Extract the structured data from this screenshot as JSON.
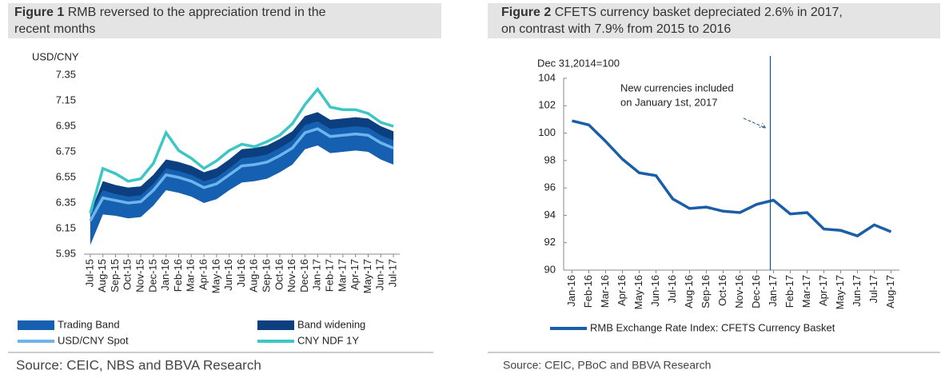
{
  "chart_data": [
    {
      "type": "band_line",
      "figure_label": "Figure 1",
      "title_lines": [
        "RMB reversed to the appreciation trend in the",
        "recent months"
      ],
      "y_label": "USD/CNY",
      "source": "Source: CEIC, NBS and BBVA Research",
      "categories": [
        "Jul-15",
        "Aug-15",
        "Sep-15",
        "Oct-15",
        "Nov-15",
        "Dec-15",
        "Jan-16",
        "Feb-16",
        "Mar-16",
        "Apr-16",
        "May-16",
        "Jun-16",
        "Jul-16",
        "Aug-16",
        "Sep-16",
        "Oct-16",
        "Nov-16",
        "Dec-16",
        "Jan-17",
        "Feb-17",
        "Mar-17",
        "Apr-17",
        "May-17",
        "Jun-17",
        "Jul-17"
      ],
      "ylim": [
        5.95,
        7.35
      ],
      "yticks": [
        5.95,
        6.15,
        6.35,
        6.55,
        6.75,
        6.95,
        7.15,
        7.35
      ],
      "series": [
        {
          "name": "Trading Band",
          "kind": "band",
          "color": "#1560b0",
          "values": [
            6.27,
            6.52,
            6.49,
            6.47,
            6.48,
            6.57,
            6.69,
            6.67,
            6.64,
            6.59,
            6.62,
            6.69,
            6.77,
            6.78,
            6.8,
            6.85,
            6.91,
            7.03,
            7.06,
            7.0,
            7.01,
            7.02,
            7.01,
            6.95,
            6.91
          ],
          "lower": [
            6.02,
            6.26,
            6.25,
            6.23,
            6.24,
            6.33,
            6.45,
            6.43,
            6.4,
            6.35,
            6.38,
            6.45,
            6.51,
            6.52,
            6.54,
            6.59,
            6.65,
            6.77,
            6.8,
            6.74,
            6.75,
            6.76,
            6.75,
            6.69,
            6.65
          ]
        },
        {
          "name": "Band widening",
          "kind": "band",
          "color": "#0b3f7f",
          "values": [
            6.27,
            6.52,
            6.49,
            6.47,
            6.48,
            6.57,
            6.69,
            6.67,
            6.64,
            6.59,
            6.62,
            6.69,
            6.77,
            6.78,
            6.8,
            6.85,
            6.91,
            7.03,
            7.06,
            7.0,
            7.01,
            7.02,
            7.01,
            6.95,
            6.91
          ],
          "lower": [
            6.27,
            6.45,
            6.42,
            6.4,
            6.41,
            6.5,
            6.62,
            6.6,
            6.57,
            6.52,
            6.55,
            6.62,
            6.7,
            6.71,
            6.73,
            6.78,
            6.84,
            6.96,
            6.99,
            6.93,
            6.94,
            6.95,
            6.94,
            6.88,
            6.84
          ]
        },
        {
          "name": "USD/CNY Spot",
          "kind": "line",
          "color": "#6db5ec",
          "values": [
            6.21,
            6.39,
            6.37,
            6.35,
            6.36,
            6.45,
            6.57,
            6.55,
            6.52,
            6.47,
            6.5,
            6.57,
            6.64,
            6.65,
            6.67,
            6.72,
            6.78,
            6.9,
            6.93,
            6.87,
            6.88,
            6.89,
            6.88,
            6.82,
            6.78
          ]
        },
        {
          "name": "CNY NDF 1Y",
          "kind": "line",
          "color": "#3cc6c4",
          "values": [
            6.27,
            6.62,
            6.58,
            6.52,
            6.54,
            6.66,
            6.9,
            6.76,
            6.7,
            6.62,
            6.68,
            6.76,
            6.81,
            6.79,
            6.83,
            6.88,
            6.97,
            7.12,
            7.24,
            7.1,
            7.08,
            7.08,
            7.05,
            6.98,
            6.95
          ]
        }
      ]
    },
    {
      "type": "line",
      "figure_label": "Figure 2",
      "title_lines": [
        "CFETS currency basket depreciated 2.6% in 2017,",
        "on contrast with 7.9% from 2015 to  2016"
      ],
      "y_label": "Dec 31,2014=100",
      "source": "Source: CEIC, PBoC and BBVA Research",
      "annotation": {
        "lines": [
          "New currencies included",
          "on January 1st, 2017"
        ],
        "at": "Jan-17"
      },
      "categories": [
        "Jan-16",
        "Feb-16",
        "Mar-16",
        "Apr-16",
        "May-16",
        "Jun-16",
        "Jul-16",
        "Aug-16",
        "Sep-16",
        "Oct-16",
        "Nov-16",
        "Dec-16",
        "Jan-17",
        "Feb-17",
        "Mar-17",
        "Apr-17",
        "May-17",
        "Jun-17",
        "Jul-17",
        "Aug-17"
      ],
      "ylim": [
        90,
        104
      ],
      "yticks": [
        90,
        92,
        94,
        96,
        98,
        100,
        102,
        104
      ],
      "series": [
        {
          "name": "RMB Exchange Rate Index: CFETS Currency Basket",
          "kind": "line",
          "color": "#1a5ea8",
          "values": [
            100.9,
            100.6,
            99.4,
            98.1,
            97.1,
            96.9,
            95.2,
            94.5,
            94.6,
            94.3,
            94.2,
            94.8,
            95.1,
            94.1,
            94.2,
            93.0,
            92.9,
            92.5,
            93.3,
            92.8
          ]
        }
      ]
    }
  ]
}
